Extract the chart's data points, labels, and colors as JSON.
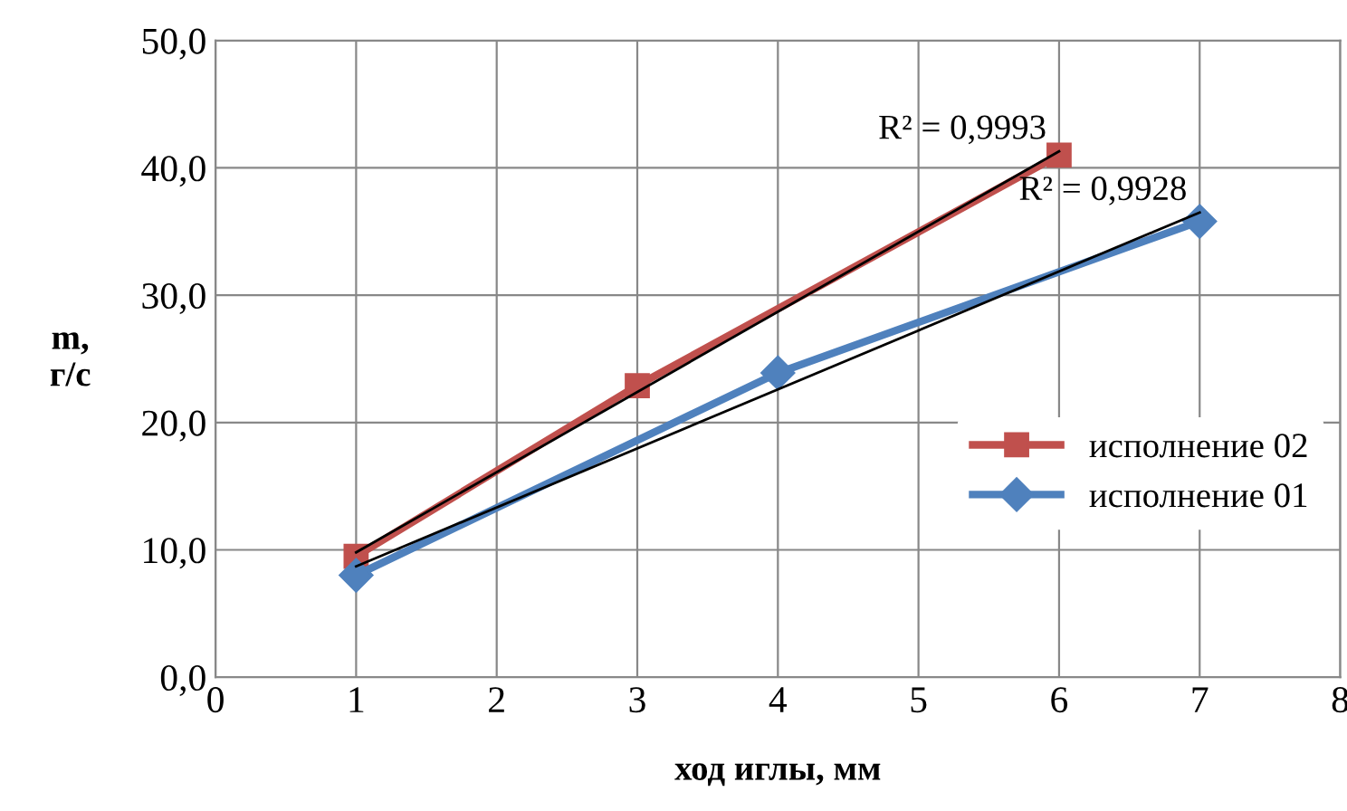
{
  "chart_data": {
    "type": "line",
    "xlabel": "ход иглы, мм",
    "ylabel": "m,\nг/с",
    "xlim": [
      0,
      8
    ],
    "xticks": [
      0,
      1,
      2,
      3,
      4,
      5,
      6,
      7,
      8
    ],
    "ylim": [
      0,
      50
    ],
    "yticks": [
      {
        "value": 0,
        "label": "0,0"
      },
      {
        "value": 10,
        "label": "10,0"
      },
      {
        "value": 20,
        "label": "20,0"
      },
      {
        "value": 30,
        "label": "30,0"
      },
      {
        "value": 40,
        "label": "40,0"
      },
      {
        "value": 50,
        "label": "50,0"
      }
    ],
    "grid": true,
    "legend": "center right",
    "series": [
      {
        "name": "исполнение 02",
        "color": "#c0504d",
        "marker": "square",
        "x": [
          1,
          3,
          6
        ],
        "values": [
          9.5,
          22.9,
          41.0
        ]
      },
      {
        "name": "исполнение 01",
        "color": "#4f81bd",
        "marker": "diamond",
        "x": [
          1,
          4,
          7
        ],
        "values": [
          8.0,
          23.9,
          35.8
        ]
      },
      {
        "color": "#000000",
        "marker": "none",
        "x": [
          1,
          6
        ],
        "values": [
          9.8,
          41.3
        ]
      },
      {
        "color": "#000000",
        "marker": "none",
        "x": [
          1,
          7
        ],
        "values": [
          8.7,
          36.5
        ]
      }
    ],
    "annotations": [
      {
        "text": "R² = 0,9993",
        "x": 6,
        "y": 41.3
      },
      {
        "text": "R² = 0,9928",
        "x": 7,
        "y": 36.5
      }
    ]
  }
}
